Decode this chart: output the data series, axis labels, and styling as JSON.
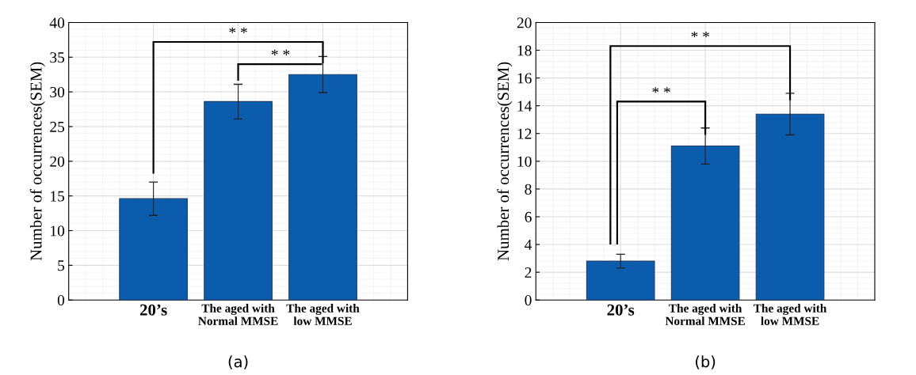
{
  "chart_data": [
    {
      "type": "bar",
      "ylabel": "Number of occurrences(SEM)",
      "categories": [
        "20’s",
        "The aged with\nNormal MMSE",
        "The aged with\nlow MMSE"
      ],
      "values": [
        14.6,
        28.6,
        32.5
      ],
      "errors": [
        2.4,
        2.5,
        2.6
      ],
      "color": "#0b5cad",
      "ylim": [
        0,
        40
      ],
      "yticks": [
        0,
        5,
        10,
        15,
        20,
        25,
        30,
        35,
        40
      ],
      "grid": true,
      "annotations": [
        "* *",
        "* *",
        "(a)"
      ]
    },
    {
      "type": "bar",
      "ylabel": "Number of occurrences(SEM)",
      "categories": [
        "20’s",
        "The aged with\nNormal MMSE",
        "The aged with\nlow MMSE"
      ],
      "values": [
        2.8,
        11.1,
        13.4
      ],
      "errors": [
        0.5,
        1.3,
        1.5
      ],
      "color": "#0b5cad",
      "ylim": [
        0,
        20
      ],
      "yticks": [
        0,
        2,
        4,
        6,
        8,
        10,
        12,
        14,
        16,
        18,
        20
      ],
      "grid": true,
      "annotations": [
        "* *",
        "* *",
        "(b)"
      ]
    }
  ]
}
